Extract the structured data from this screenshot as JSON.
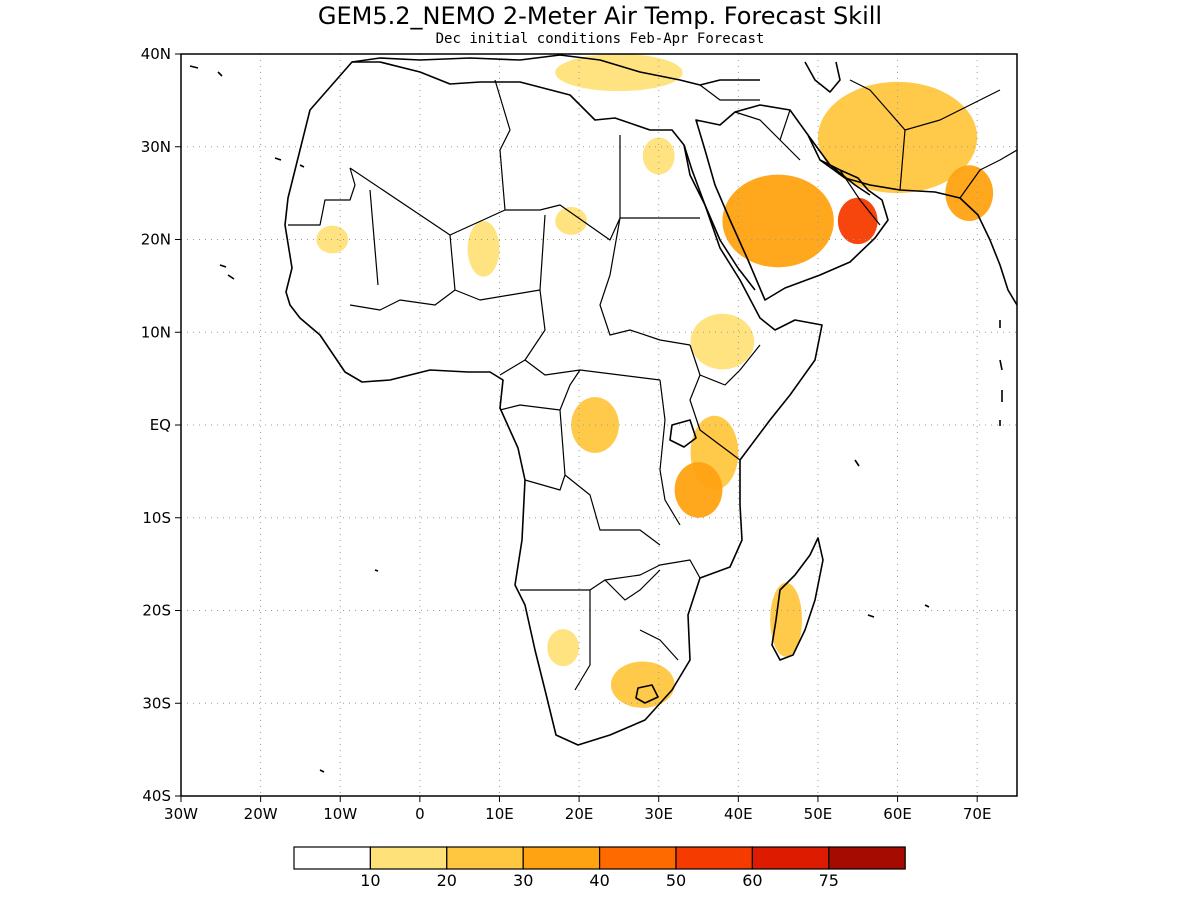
{
  "header": {
    "title": "GEM5.2_NEMO 2-Meter Air Temp. Forecast Skill",
    "subtitle": "Dec initial conditions  Feb-Apr Forecast"
  },
  "axes": {
    "lon_ticks": [
      "30W",
      "20W",
      "10W",
      "0",
      "10E",
      "20E",
      "30E",
      "40E",
      "50E",
      "60E",
      "70E"
    ],
    "lat_ticks": [
      "40N",
      "30N",
      "20N",
      "10N",
      "EQ",
      "10S",
      "20S",
      "30S",
      "40S"
    ],
    "lon_range": [
      -30,
      75
    ],
    "lat_range": [
      -40,
      40
    ]
  },
  "colorbar": {
    "labels": [
      "10",
      "20",
      "30",
      "40",
      "50",
      "60",
      "75"
    ],
    "colors": [
      "#ffffff",
      "#ffe17a",
      "#ffc640",
      "#ffa312",
      "#ff6a00",
      "#f53b00",
      "#dd1b00",
      "#a50b00"
    ]
  },
  "skill_regions": [
    {
      "name": "arabian-peninsula-core",
      "lon": 45,
      "lat": 22,
      "rx": 7,
      "ry": 5,
      "level": 3
    },
    {
      "name": "oman-maximum",
      "lon": 55,
      "lat": 22,
      "rx": 2.5,
      "ry": 2.5,
      "level": 5
    },
    {
      "name": "iran-pakistan",
      "lon": 60,
      "lat": 31,
      "rx": 10,
      "ry": 6,
      "level": 2
    },
    {
      "name": "india-northwest",
      "lon": 69,
      "lat": 25,
      "rx": 3,
      "ry": 3,
      "level": 3
    },
    {
      "name": "east-africa-kenya",
      "lon": 37,
      "lat": -3,
      "rx": 3,
      "ry": 4,
      "level": 2
    },
    {
      "name": "tanzania",
      "lon": 35,
      "lat": -7,
      "rx": 3,
      "ry": 3,
      "level": 3
    },
    {
      "name": "central-africa",
      "lon": 22,
      "lat": 0,
      "rx": 3,
      "ry": 3,
      "level": 2
    },
    {
      "name": "madagascar",
      "lon": 46,
      "lat": -21,
      "rx": 2,
      "ry": 4,
      "level": 2
    },
    {
      "name": "south-africa",
      "lon": 28,
      "lat": -28,
      "rx": 4,
      "ry": 2.5,
      "level": 2
    },
    {
      "name": "namibia",
      "lon": 18,
      "lat": -24,
      "rx": 2,
      "ry": 2,
      "level": 1
    },
    {
      "name": "ethiopia",
      "lon": 38,
      "lat": 9,
      "rx": 4,
      "ry": 3,
      "level": 1
    },
    {
      "name": "mauritania",
      "lon": -11,
      "lat": 20,
      "rx": 2,
      "ry": 1.5,
      "level": 1
    },
    {
      "name": "sahel-niger",
      "lon": 8,
      "lat": 19,
      "rx": 2,
      "ry": 3,
      "level": 1
    },
    {
      "name": "egypt-east",
      "lon": 30,
      "lat": 29,
      "rx": 2,
      "ry": 2,
      "level": 1
    },
    {
      "name": "nile-valley",
      "lon": 19,
      "lat": 22,
      "rx": 2,
      "ry": 1.5,
      "level": 1
    },
    {
      "name": "mediterranean-north",
      "lon": 25,
      "lat": 38,
      "rx": 8,
      "ry": 2,
      "level": 1
    }
  ]
}
